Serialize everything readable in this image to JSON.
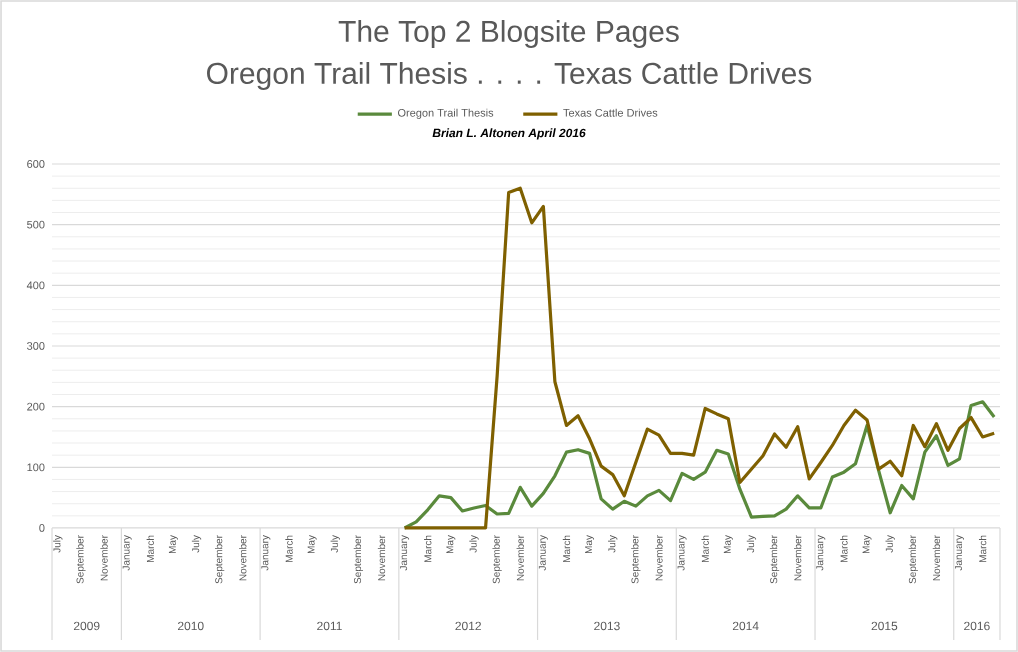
{
  "chart_data": {
    "type": "line",
    "title": "The Top 2 Blogsite Pages",
    "subtitle": "Oregon Trail Thesis . . . . Texas Cattle Drives",
    "annotations": [
      "Brian L. Altonen April 2016",
      "2009",
      "2010",
      "2011",
      "2012",
      "2013",
      "2014",
      "2015",
      "2016"
    ],
    "categories": [
      "July",
      null,
      "September",
      null,
      "November",
      null,
      "January",
      null,
      "March",
      null,
      "May",
      null,
      "July",
      null,
      "September",
      null,
      "November",
      null,
      "January",
      null,
      "March",
      null,
      "May",
      null,
      "July",
      null,
      "September",
      null,
      "November",
      null,
      "January",
      null,
      "March",
      null,
      "May",
      null,
      "July",
      null,
      "September",
      null,
      "November",
      null,
      "January",
      null,
      "March",
      null,
      "May",
      null,
      "July",
      null,
      "September",
      null,
      "November",
      null,
      "January",
      null,
      "March",
      null,
      "May",
      null,
      "July",
      null,
      "September",
      null,
      "November",
      null,
      "January",
      null,
      "March",
      null,
      "May",
      null,
      "July",
      null,
      "September",
      null,
      "November",
      null,
      "January",
      null,
      "March",
      null
    ],
    "series": [
      {
        "name": "Oregon Trail Thesis",
        "color": "#5a8a3c",
        "values": [
          null,
          null,
          null,
          null,
          null,
          null,
          null,
          null,
          null,
          null,
          null,
          null,
          null,
          null,
          null,
          null,
          null,
          null,
          null,
          null,
          null,
          null,
          null,
          null,
          null,
          null,
          null,
          null,
          null,
          null,
          0,
          10,
          30,
          53,
          50,
          28,
          33,
          37,
          23,
          24,
          67,
          36,
          57,
          86,
          125,
          129,
          123,
          48,
          31,
          44,
          36,
          53,
          62,
          45,
          90,
          80,
          92,
          128,
          122,
          64,
          18,
          19,
          20,
          31,
          53,
          33,
          33,
          84,
          92,
          106,
          169,
          95,
          25,
          70,
          48,
          125,
          152,
          103,
          114,
          202,
          208,
          183
        ]
      },
      {
        "name": "Texas Cattle Drives",
        "color": "#7f6000",
        "values": [
          null,
          null,
          null,
          null,
          null,
          null,
          null,
          null,
          null,
          null,
          null,
          null,
          null,
          null,
          null,
          null,
          null,
          null,
          null,
          null,
          null,
          null,
          null,
          null,
          null,
          null,
          null,
          null,
          null,
          null,
          0,
          0,
          0,
          0,
          0,
          0,
          0,
          0,
          250,
          553,
          560,
          503,
          530,
          241,
          169,
          185,
          147,
          102,
          88,
          53,
          108,
          163,
          153,
          123,
          123,
          120,
          197,
          188,
          180,
          75,
          97,
          119,
          155,
          133,
          167,
          81,
          108,
          136,
          169,
          194,
          178,
          97,
          110,
          86,
          169,
          134,
          172,
          128,
          164,
          182,
          150,
          156
        ]
      }
    ],
    "ylim": [
      0,
      600
    ],
    "yticks": [
      0,
      100,
      200,
      300,
      400,
      500,
      600
    ],
    "grid": "y",
    "legend": "top",
    "marker": "none",
    "line_style": "solid"
  }
}
